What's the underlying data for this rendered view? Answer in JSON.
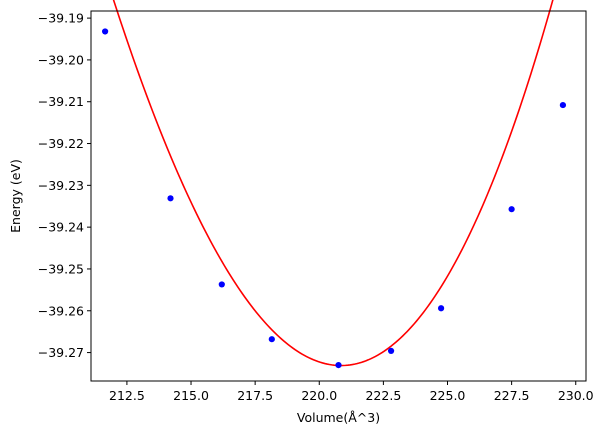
{
  "chart_data": {
    "type": "scatter",
    "title": "",
    "xlabel": "Volume(Å^3)",
    "ylabel": "Energy (eV)",
    "xlim": [
      211.1,
      230.4
    ],
    "ylim": [
      -39.2768,
      -39.1883
    ],
    "x_ticks": [
      212.5,
      215.0,
      217.5,
      220.0,
      222.5,
      225.0,
      227.5,
      230.0
    ],
    "x_tick_labels": [
      "212.5",
      "215.0",
      "217.5",
      "220.0",
      "222.5",
      "225.0",
      "227.5",
      "230.0"
    ],
    "y_ticks": [
      -39.27,
      -39.26,
      -39.25,
      -39.24,
      -39.23,
      -39.22,
      -39.21,
      -39.2,
      -39.19
    ],
    "y_tick_labels": [
      "−39.27",
      "−39.26",
      "−39.25",
      "−39.24",
      "−39.23",
      "−39.22",
      "−39.21",
      "−39.20",
      "−39.19"
    ],
    "grid": false,
    "series": [
      {
        "type": "scatter",
        "color": "#0000ff",
        "x": [
          211.65,
          214.2,
          216.2,
          218.15,
          220.75,
          222.8,
          224.75,
          227.5,
          229.5
        ],
        "y": [
          -39.1932,
          -39.2331,
          -39.2537,
          -39.2668,
          -39.273,
          -39.2696,
          -39.2594,
          -39.2357,
          -39.2108
        ]
      },
      {
        "type": "line",
        "color": "#ff0000",
        "x_range": [
          211.65,
          229.5
        ],
        "fit": {
          "min_x": 220.85,
          "min_y": -39.2731,
          "curvature": 0.0012,
          "cubic": 1e-05
        }
      }
    ]
  }
}
